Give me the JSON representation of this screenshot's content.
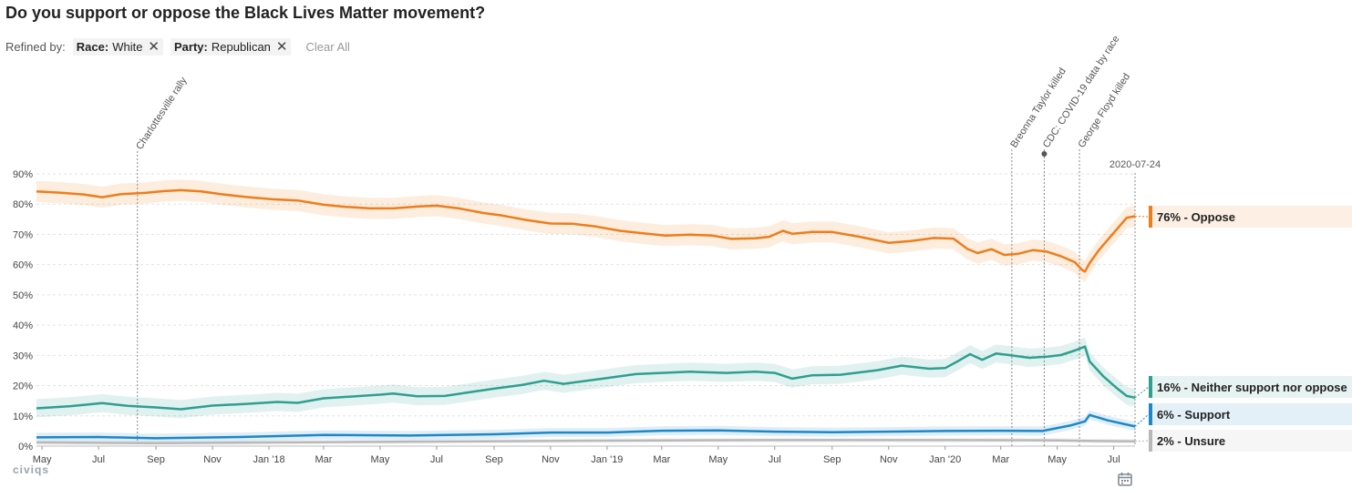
{
  "title": "Do you support or oppose the Black Lives Matter movement?",
  "filters": {
    "label": "Refined by:",
    "items": [
      {
        "key": "Race:",
        "value": "White"
      },
      {
        "key": "Party:",
        "value": "Republican"
      }
    ],
    "clear_label": "Clear All"
  },
  "logo_text": "civiqs",
  "chart_data": {
    "type": "line",
    "y_ticks": [
      "0%",
      "10%",
      "20%",
      "30%",
      "40%",
      "50%",
      "60%",
      "70%",
      "80%",
      "90%"
    ],
    "ylim": [
      0,
      90
    ],
    "x_ticks": [
      {
        "label": "May",
        "date": "2017-05-01"
      },
      {
        "label": "Jul",
        "date": "2017-07-01"
      },
      {
        "label": "Sep",
        "date": "2017-09-01"
      },
      {
        "label": "Nov",
        "date": "2017-11-01"
      },
      {
        "label": "Jan '18",
        "date": "2018-01-01"
      },
      {
        "label": "Mar",
        "date": "2018-03-01"
      },
      {
        "label": "May",
        "date": "2018-05-01"
      },
      {
        "label": "Jul",
        "date": "2018-07-01"
      },
      {
        "label": "Sep",
        "date": "2018-09-01"
      },
      {
        "label": "Nov",
        "date": "2018-11-01"
      },
      {
        "label": "Jan '19",
        "date": "2019-01-01"
      },
      {
        "label": "Mar",
        "date": "2019-03-01"
      },
      {
        "label": "May",
        "date": "2019-05-01"
      },
      {
        "label": "Jul",
        "date": "2019-07-01"
      },
      {
        "label": "Sep",
        "date": "2019-09-01"
      },
      {
        "label": "Nov",
        "date": "2019-11-01"
      },
      {
        "label": "Jan '20",
        "date": "2020-01-01"
      },
      {
        "label": "Mar",
        "date": "2020-03-01"
      },
      {
        "label": "May",
        "date": "2020-05-01"
      },
      {
        "label": "Jul",
        "date": "2020-07-01"
      }
    ],
    "xlim": [
      "2017-04-25",
      "2020-07-24"
    ],
    "annotations": [
      {
        "label": "Charlottesville rally",
        "date": "2017-08-12"
      },
      {
        "label": "Breonna Taylor killed",
        "date": "2020-03-13"
      },
      {
        "label": "CDC: COVID-19 data by race",
        "date": "2020-04-17"
      },
      {
        "label": "George Floyd killed",
        "date": "2020-05-25"
      },
      {
        "label": "2020-07-24",
        "date": "2020-07-24"
      }
    ],
    "series": [
      {
        "name": "Oppose",
        "end_label": "76% - Oppose",
        "color": "#ee7d1a",
        "band": 3.5,
        "points": [
          [
            "2017-04-25",
            84.2
          ],
          [
            "2017-05-20",
            83.8
          ],
          [
            "2017-06-15",
            83.2
          ],
          [
            "2017-07-05",
            82.3
          ],
          [
            "2017-07-25",
            83.3
          ],
          [
            "2017-08-20",
            83.7
          ],
          [
            "2017-09-10",
            84.3
          ],
          [
            "2017-09-28",
            84.6
          ],
          [
            "2017-10-20",
            84.2
          ],
          [
            "2017-11-10",
            83.3
          ],
          [
            "2017-12-10",
            82.3
          ],
          [
            "2018-01-05",
            81.6
          ],
          [
            "2018-02-01",
            81.2
          ],
          [
            "2018-03-01",
            79.8
          ],
          [
            "2018-03-25",
            79.1
          ],
          [
            "2018-04-20",
            78.6
          ],
          [
            "2018-05-15",
            78.6
          ],
          [
            "2018-06-10",
            79.2
          ],
          [
            "2018-07-01",
            79.5
          ],
          [
            "2018-07-25",
            78.6
          ],
          [
            "2018-08-20",
            77.1
          ],
          [
            "2018-09-10",
            76.2
          ],
          [
            "2018-10-05",
            74.8
          ],
          [
            "2018-11-01",
            73.6
          ],
          [
            "2018-11-25",
            73.5
          ],
          [
            "2018-12-20",
            72.6
          ],
          [
            "2019-01-15",
            71.2
          ],
          [
            "2019-02-10",
            70.3
          ],
          [
            "2019-03-05",
            69.6
          ],
          [
            "2019-04-01",
            69.9
          ],
          [
            "2019-04-25",
            69.6
          ],
          [
            "2019-05-15",
            68.5
          ],
          [
            "2019-06-10",
            68.7
          ],
          [
            "2019-06-25",
            69.2
          ],
          [
            "2019-07-10",
            71.2
          ],
          [
            "2019-07-20",
            70.2
          ],
          [
            "2019-08-10",
            70.8
          ],
          [
            "2019-09-01",
            70.8
          ],
          [
            "2019-10-01",
            69.2
          ],
          [
            "2019-11-01",
            67.2
          ],
          [
            "2019-11-25",
            67.8
          ],
          [
            "2019-12-20",
            68.8
          ],
          [
            "2020-01-10",
            68.6
          ],
          [
            "2020-01-25",
            65.2
          ],
          [
            "2020-02-05",
            63.8
          ],
          [
            "2020-02-20",
            65.1
          ],
          [
            "2020-03-05",
            63.2
          ],
          [
            "2020-03-20",
            63.6
          ],
          [
            "2020-04-05",
            64.8
          ],
          [
            "2020-04-20",
            64.3
          ],
          [
            "2020-05-05",
            62.8
          ],
          [
            "2020-05-20",
            60.8
          ],
          [
            "2020-05-28",
            58.2
          ],
          [
            "2020-05-31",
            57.7
          ],
          [
            "2020-06-05",
            60.5
          ],
          [
            "2020-06-15",
            64.8
          ],
          [
            "2020-07-01",
            70.5
          ],
          [
            "2020-07-15",
            75.5
          ],
          [
            "2020-07-24",
            76.0
          ]
        ]
      },
      {
        "name": "Neither support nor oppose",
        "end_label": "16% - Neither support nor oppose",
        "color": "#2e9f90",
        "band": 3,
        "points": [
          [
            "2017-04-25",
            12.5
          ],
          [
            "2017-06-01",
            13.2
          ],
          [
            "2017-07-05",
            14.2
          ],
          [
            "2017-08-01",
            13.3
          ],
          [
            "2017-09-01",
            12.8
          ],
          [
            "2017-09-28",
            12.2
          ],
          [
            "2017-11-01",
            13.4
          ],
          [
            "2017-12-10",
            14.0
          ],
          [
            "2018-01-10",
            14.6
          ],
          [
            "2018-02-01",
            14.3
          ],
          [
            "2018-03-01",
            15.8
          ],
          [
            "2018-04-01",
            16.4
          ],
          [
            "2018-05-01",
            17.0
          ],
          [
            "2018-05-15",
            17.4
          ],
          [
            "2018-06-10",
            16.5
          ],
          [
            "2018-07-10",
            16.6
          ],
          [
            "2018-08-01",
            17.6
          ],
          [
            "2018-09-01",
            19.0
          ],
          [
            "2018-10-01",
            20.2
          ],
          [
            "2018-10-25",
            21.6
          ],
          [
            "2018-11-15",
            20.6
          ],
          [
            "2019-01-01",
            22.5
          ],
          [
            "2019-02-01",
            23.8
          ],
          [
            "2019-03-01",
            24.2
          ],
          [
            "2019-04-01",
            24.6
          ],
          [
            "2019-05-10",
            24.2
          ],
          [
            "2019-06-10",
            24.6
          ],
          [
            "2019-07-01",
            24.2
          ],
          [
            "2019-07-20",
            22.3
          ],
          [
            "2019-08-10",
            23.4
          ],
          [
            "2019-09-10",
            23.6
          ],
          [
            "2019-10-20",
            25.1
          ],
          [
            "2019-11-15",
            26.6
          ],
          [
            "2019-12-15",
            25.6
          ],
          [
            "2020-01-01",
            25.8
          ],
          [
            "2020-01-15",
            28.1
          ],
          [
            "2020-01-28",
            30.4
          ],
          [
            "2020-02-10",
            28.5
          ],
          [
            "2020-02-25",
            30.6
          ],
          [
            "2020-03-10",
            30.1
          ],
          [
            "2020-04-01",
            29.2
          ],
          [
            "2020-04-20",
            29.6
          ],
          [
            "2020-05-05",
            30.1
          ],
          [
            "2020-05-20",
            31.6
          ],
          [
            "2020-05-31",
            32.9
          ],
          [
            "2020-06-05",
            28.0
          ],
          [
            "2020-06-20",
            23.0
          ],
          [
            "2020-07-05",
            19.0
          ],
          [
            "2020-07-15",
            16.6
          ],
          [
            "2020-07-24",
            16.0
          ]
        ]
      },
      {
        "name": "Support",
        "end_label": "6% - Support",
        "color": "#1c87c9",
        "band": 1.5,
        "points": [
          [
            "2017-04-25",
            2.9
          ],
          [
            "2017-07-01",
            3.0
          ],
          [
            "2017-09-01",
            2.6
          ],
          [
            "2017-12-01",
            3.0
          ],
          [
            "2018-03-01",
            3.7
          ],
          [
            "2018-06-01",
            3.5
          ],
          [
            "2018-09-01",
            3.9
          ],
          [
            "2018-11-01",
            4.5
          ],
          [
            "2019-01-01",
            4.5
          ],
          [
            "2019-03-01",
            5.1
          ],
          [
            "2019-05-01",
            5.2
          ],
          [
            "2019-07-01",
            4.8
          ],
          [
            "2019-09-01",
            4.6
          ],
          [
            "2019-11-01",
            4.8
          ],
          [
            "2020-01-01",
            5.0
          ],
          [
            "2020-03-01",
            5.1
          ],
          [
            "2020-04-15",
            5.0
          ],
          [
            "2020-05-15",
            6.8
          ],
          [
            "2020-05-31",
            8.2
          ],
          [
            "2020-06-05",
            10.3
          ],
          [
            "2020-06-25",
            8.5
          ],
          [
            "2020-07-24",
            6.5
          ]
        ]
      },
      {
        "name": "Unsure",
        "end_label": "2% - Unsure",
        "color": "#b8b8b8",
        "band": 0.8,
        "points": [
          [
            "2017-04-25",
            1.2
          ],
          [
            "2017-09-01",
            1.0
          ],
          [
            "2018-01-01",
            1.2
          ],
          [
            "2018-07-01",
            1.5
          ],
          [
            "2019-01-01",
            1.8
          ],
          [
            "2019-07-01",
            2.0
          ],
          [
            "2020-01-01",
            2.0
          ],
          [
            "2020-05-01",
            1.9
          ],
          [
            "2020-06-10",
            1.7
          ],
          [
            "2020-07-24",
            1.6
          ]
        ]
      }
    ]
  }
}
